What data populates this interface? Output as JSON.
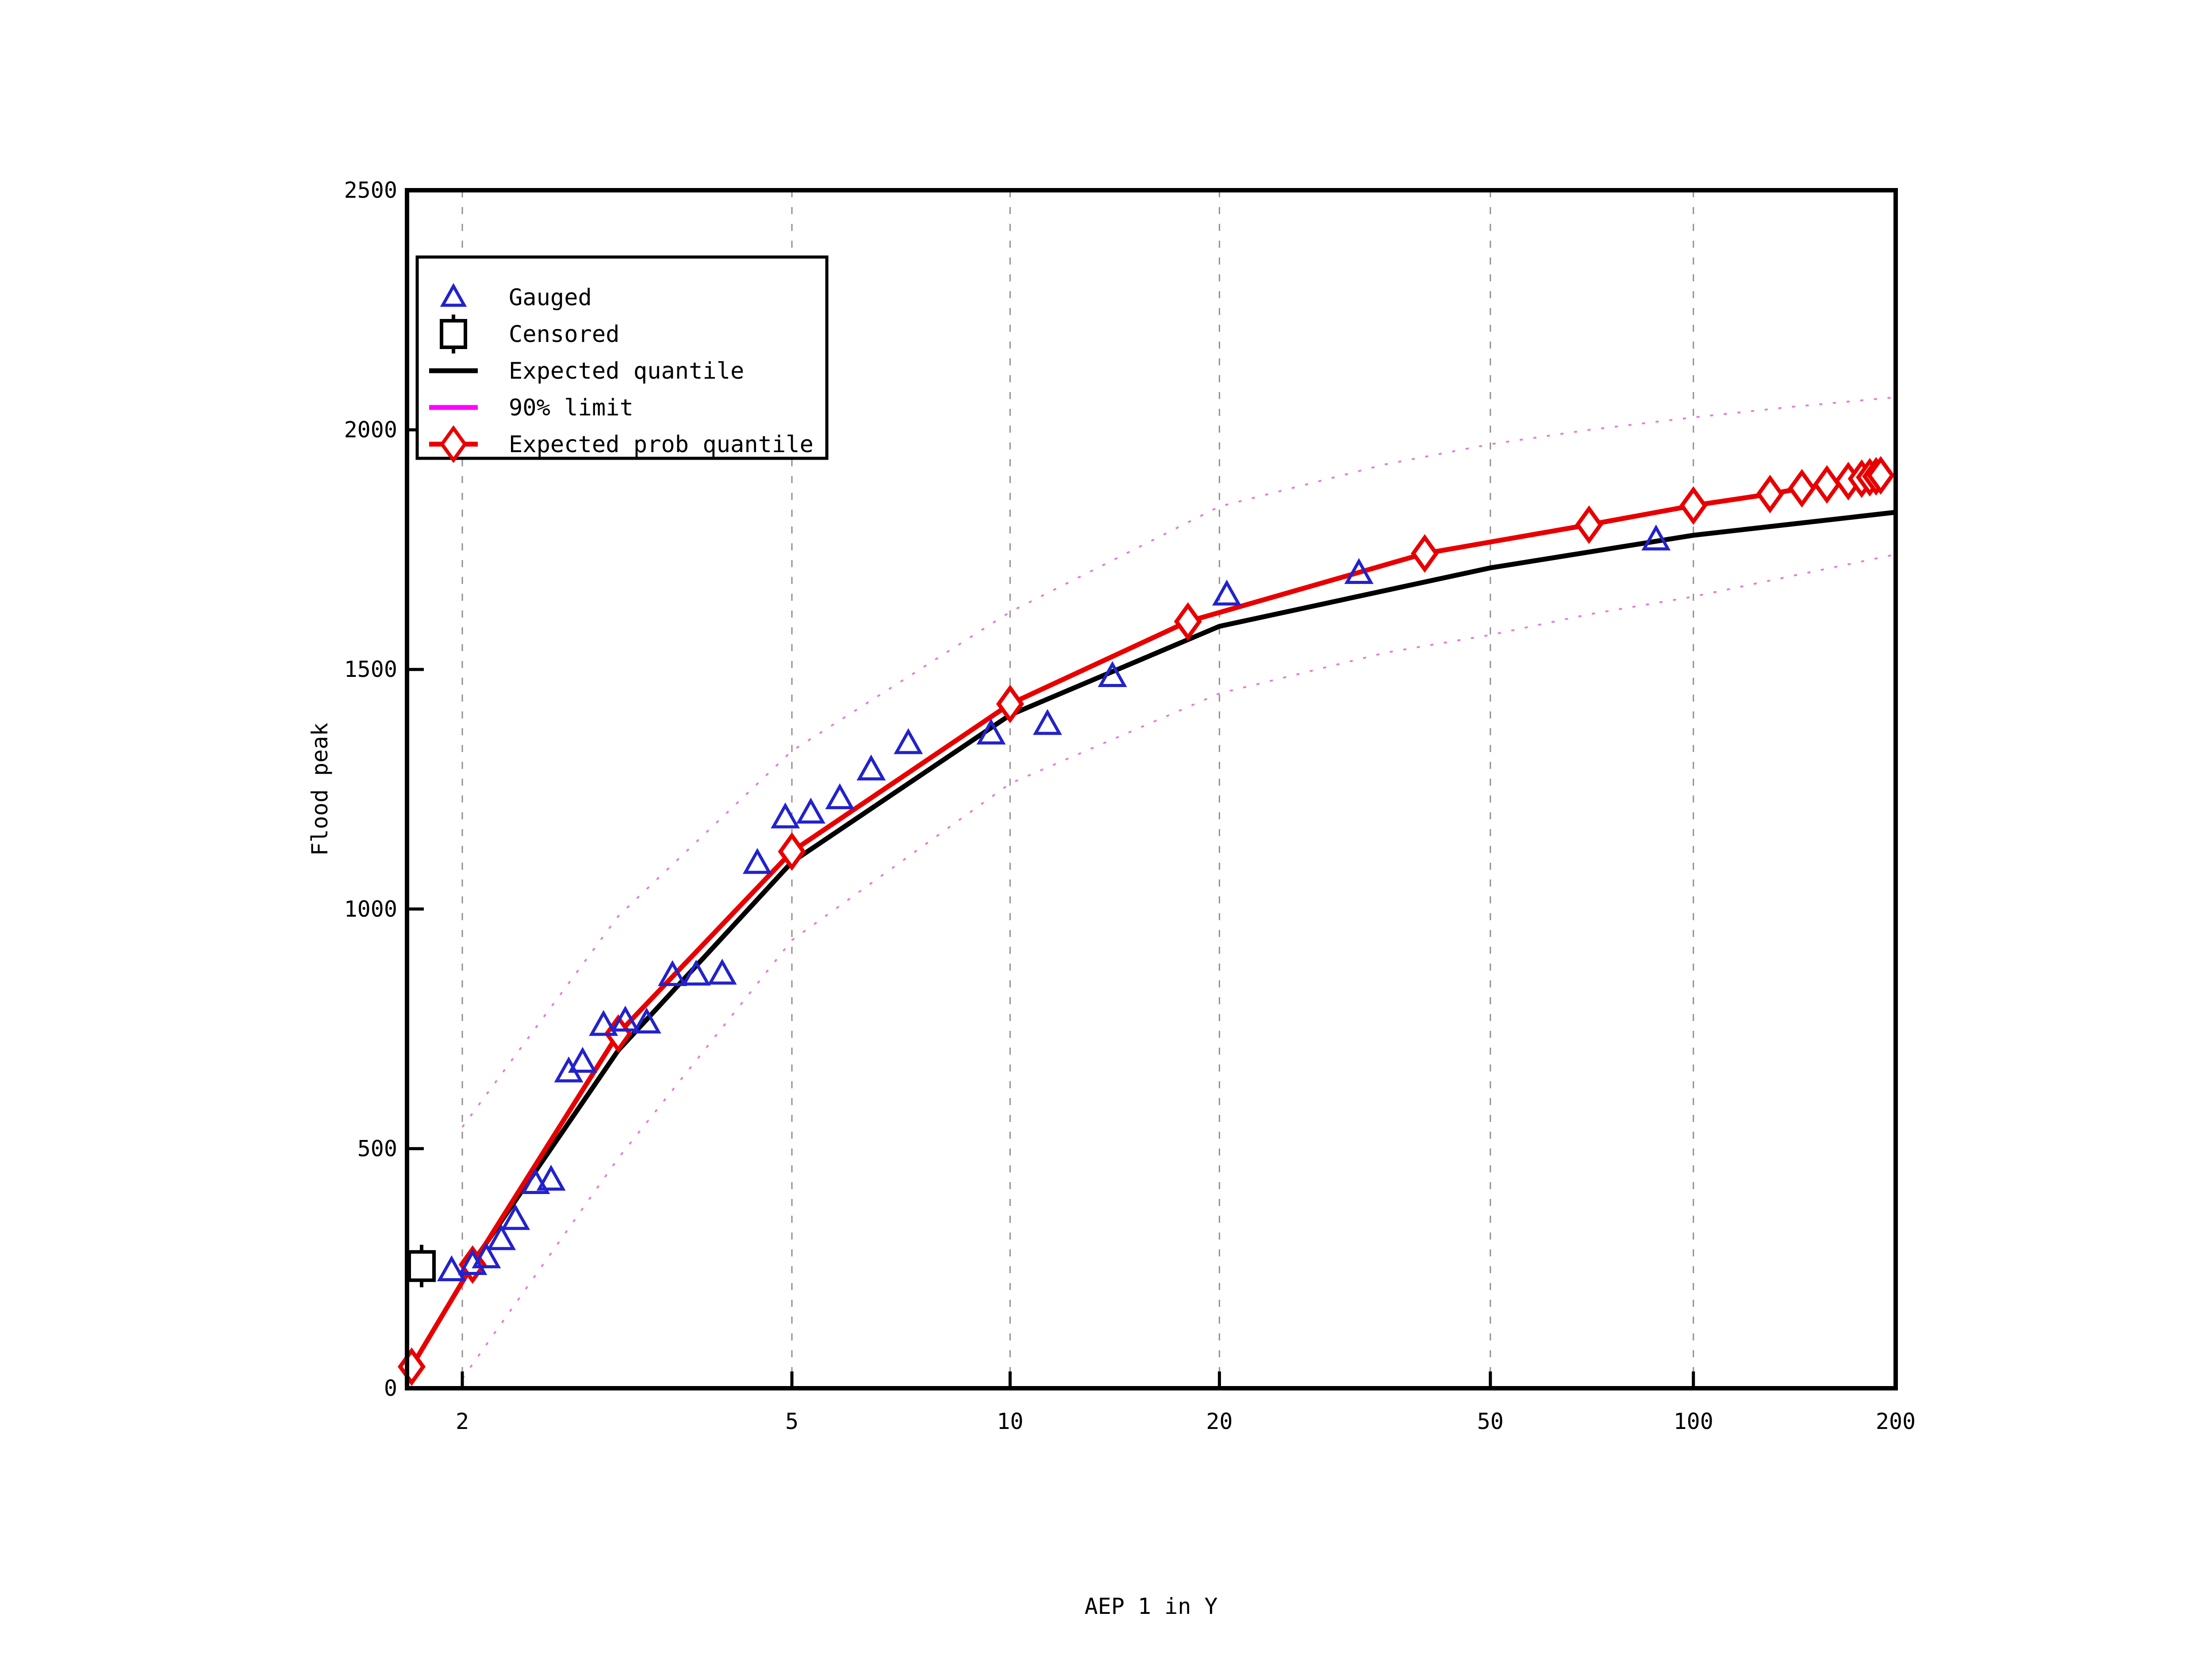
{
  "figure": {
    "background": "#ffffff",
    "plot_border_color": "#000000",
    "gridline_color": "#909090"
  },
  "chart_data": {
    "type": "line",
    "title": "",
    "xlabel": "AEP 1 in Y",
    "ylabel": "Flood peak",
    "x_scale": "gumbel_reduced_variate",
    "x_ticks": [
      2,
      5,
      10,
      20,
      50,
      100,
      200
    ],
    "x_tick_labels": [
      "2",
      "5",
      "10",
      "20",
      "50",
      "100",
      "200"
    ],
    "x_gridline_ticks": [
      2,
      5,
      10,
      20,
      50,
      100
    ],
    "x_range": [
      1.78,
      200
    ],
    "y_ticks": [
      0,
      500,
      1000,
      1500,
      2000,
      2500
    ],
    "y_tick_labels": [
      "0",
      "500",
      "1000",
      "1500",
      "2000",
      "2500"
    ],
    "y_range": [
      0,
      2500
    ],
    "grid": "vertical-dashed-only",
    "legend_position": "upper-left",
    "series": [
      {
        "name": "Gauged",
        "type": "scatter",
        "marker": "triangle",
        "color": "#2222cc",
        "points": [
          [
            1.95,
            245
          ],
          [
            2.05,
            258
          ],
          [
            2.12,
            272
          ],
          [
            2.2,
            310
          ],
          [
            2.28,
            352
          ],
          [
            2.4,
            427
          ],
          [
            2.5,
            434
          ],
          [
            2.62,
            660
          ],
          [
            2.72,
            680
          ],
          [
            2.88,
            757
          ],
          [
            3.06,
            766
          ],
          [
            3.25,
            762
          ],
          [
            3.5,
            861
          ],
          [
            3.75,
            862
          ],
          [
            4.05,
            864
          ],
          [
            4.5,
            1095
          ],
          [
            4.9,
            1190
          ],
          [
            5.3,
            1200
          ],
          [
            5.8,
            1230
          ],
          [
            6.4,
            1290
          ],
          [
            7.2,
            1345
          ],
          [
            9.4,
            1365
          ],
          [
            11.3,
            1385
          ],
          [
            14,
            1485
          ],
          [
            20.5,
            1655
          ],
          [
            32,
            1700
          ],
          [
            88,
            1770
          ]
        ]
      },
      {
        "name": "Censored",
        "type": "scatter",
        "marker": "square",
        "color": "#000000",
        "points": [
          [
            1.82,
            255
          ]
        ]
      },
      {
        "name": "Expected quantile",
        "type": "line",
        "style": "solid",
        "color": "#000000",
        "points": [
          [
            2,
            230
          ],
          [
            3,
            705
          ],
          [
            5,
            1098
          ],
          [
            10,
            1405
          ],
          [
            20,
            1590
          ],
          [
            50,
            1712
          ],
          [
            100,
            1780
          ],
          [
            200,
            1828
          ]
        ]
      },
      {
        "name": "90% limit",
        "type": "line",
        "style": "dotted",
        "color": "#ff00ff",
        "plot_color": "#e678d8",
        "points_upper": [
          [
            2,
            545
          ],
          [
            3,
            985
          ],
          [
            5,
            1330
          ],
          [
            10,
            1620
          ],
          [
            20,
            1840
          ],
          [
            35,
            1928
          ],
          [
            50,
            1970
          ],
          [
            70,
            2000
          ],
          [
            100,
            2026
          ],
          [
            140,
            2048
          ],
          [
            200,
            2068
          ]
        ],
        "points_lower": [
          [
            2,
            20
          ],
          [
            3,
            480
          ],
          [
            5,
            935
          ],
          [
            10,
            1262
          ],
          [
            20,
            1450
          ],
          [
            35,
            1535
          ],
          [
            50,
            1572
          ],
          [
            70,
            1615
          ],
          [
            100,
            1652
          ],
          [
            140,
            1695
          ],
          [
            200,
            1740
          ]
        ]
      },
      {
        "name": "Expected prob quantile",
        "type": "line",
        "marker": "diamond",
        "style": "solid",
        "color": "#e80000",
        "points": [
          [
            1.78,
            45
          ],
          [
            2.05,
            258
          ],
          [
            3,
            740
          ],
          [
            5,
            1120
          ],
          [
            10,
            1428
          ],
          [
            18,
            1600
          ],
          [
            40,
            1742
          ],
          [
            70,
            1802
          ],
          [
            100,
            1842
          ],
          [
            130,
            1866
          ],
          [
            145,
            1878
          ],
          [
            158,
            1886
          ],
          [
            170,
            1893
          ],
          [
            178,
            1898
          ],
          [
            183,
            1901
          ],
          [
            187,
            1903
          ],
          [
            190,
            1905
          ]
        ]
      }
    ]
  },
  "legend": {
    "items": [
      {
        "label": "Gauged",
        "color": "#2222cc",
        "glyph": "triangle"
      },
      {
        "label": "Censored",
        "color": "#000000",
        "glyph": "square"
      },
      {
        "label": "Expected quantile",
        "color": "#000000",
        "glyph": "line"
      },
      {
        "label": "90% limit",
        "color": "#ff00ff",
        "glyph": "line"
      },
      {
        "label": "Expected prob quantile",
        "color": "#e80000",
        "glyph": "line-diamond"
      }
    ]
  }
}
